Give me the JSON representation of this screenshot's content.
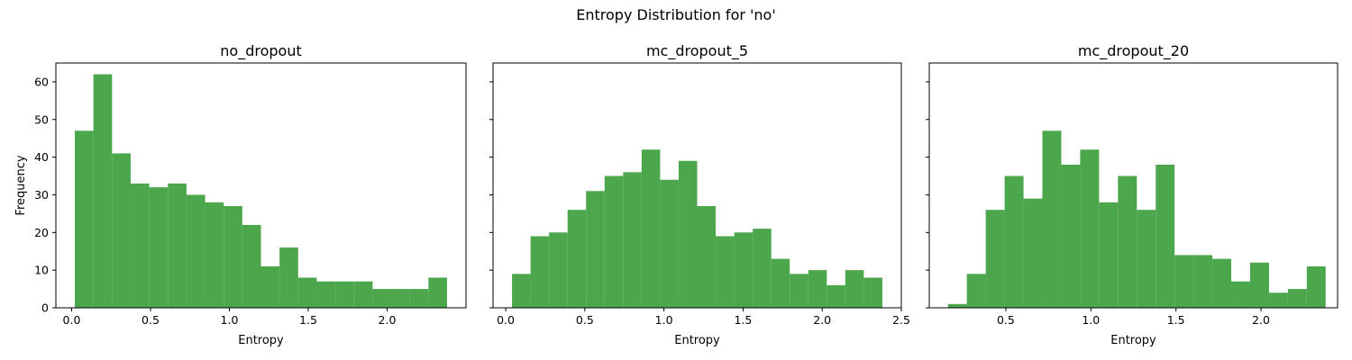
{
  "figure": {
    "suptitle": "Entropy Distribution for 'no'",
    "ylabel": "Frequency",
    "bar_color": "#4ca64c"
  },
  "chart_data": [
    {
      "type": "bar",
      "title": "no_dropout",
      "xlabel": "Entropy",
      "ylabel": "Frequency",
      "xlim": [
        -0.1,
        2.5
      ],
      "ylim": [
        0,
        65
      ],
      "xticks": [
        0.0,
        0.5,
        1.0,
        1.5,
        2.0
      ],
      "xtick_labels": [
        "0.0",
        "0.5",
        "1.0",
        "1.5",
        "2.0"
      ],
      "yticks": [
        0,
        10,
        20,
        30,
        40,
        50,
        60
      ],
      "ytick_labels": [
        "0",
        "10",
        "20",
        "30",
        "40",
        "50",
        "60"
      ],
      "bin_edges": [
        0.02,
        0.138,
        0.256,
        0.374,
        0.492,
        0.61,
        0.728,
        0.846,
        0.964,
        1.082,
        1.2,
        1.318,
        1.436,
        1.554,
        1.672,
        1.79,
        1.908,
        2.026,
        2.144,
        2.262,
        2.38
      ],
      "values": [
        47,
        62,
        41,
        33,
        32,
        33,
        30,
        28,
        27,
        22,
        11,
        16,
        8,
        7,
        7,
        7,
        5,
        5,
        5,
        8
      ]
    },
    {
      "type": "bar",
      "title": "mc_dropout_5",
      "xlabel": "Entropy",
      "ylabel": "",
      "xlim": [
        -0.08,
        2.5
      ],
      "ylim": [
        0,
        65
      ],
      "xticks": [
        0.0,
        0.5,
        1.0,
        1.5,
        2.0,
        2.5
      ],
      "xtick_labels": [
        "0.0",
        "0.5",
        "1.0",
        "1.5",
        "2.0",
        "2.5"
      ],
      "yticks": [
        0,
        10,
        20,
        30,
        40,
        50,
        60
      ],
      "ytick_labels": [],
      "bin_edges": [
        0.04,
        0.157,
        0.274,
        0.391,
        0.508,
        0.625,
        0.742,
        0.859,
        0.976,
        1.093,
        1.21,
        1.327,
        1.444,
        1.561,
        1.678,
        1.795,
        1.912,
        2.029,
        2.146,
        2.263,
        2.38
      ],
      "values": [
        9,
        19,
        20,
        26,
        31,
        35,
        36,
        42,
        34,
        39,
        27,
        19,
        20,
        21,
        13,
        9,
        10,
        6,
        10,
        8
      ]
    },
    {
      "type": "bar",
      "title": "mc_dropout_20",
      "xlabel": "Entropy",
      "ylabel": "",
      "xlim": [
        0.05,
        2.45
      ],
      "ylim": [
        0,
        65
      ],
      "xticks": [
        0.5,
        1.0,
        1.5,
        2.0
      ],
      "xtick_labels": [
        "0.5",
        "1.0",
        "1.5",
        "2.0"
      ],
      "yticks": [
        0,
        10,
        20,
        30,
        40,
        50,
        60
      ],
      "ytick_labels": [],
      "bin_edges": [
        0.16,
        0.271,
        0.382,
        0.493,
        0.604,
        0.715,
        0.826,
        0.937,
        1.048,
        1.159,
        1.27,
        1.381,
        1.492,
        1.603,
        1.714,
        1.825,
        1.936,
        2.047,
        2.158,
        2.269,
        2.38
      ],
      "values": [
        1,
        9,
        26,
        35,
        29,
        47,
        38,
        42,
        28,
        35,
        26,
        38,
        14,
        14,
        13,
        7,
        12,
        4,
        5,
        11
      ]
    }
  ]
}
